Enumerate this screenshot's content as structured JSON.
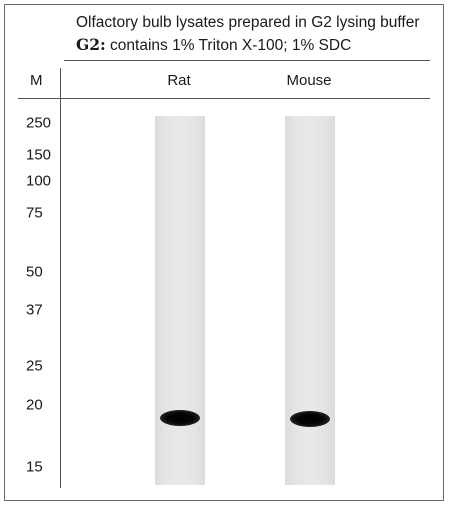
{
  "title": {
    "line1": "Olfactory bulb lysates  prepared in G2 lysing buffer",
    "line2_bold": "G2:",
    "line2_rest": " contains 1% Triton X-100; 1% SDC"
  },
  "marker_column_header": "M",
  "lanes": [
    {
      "label": "Rat"
    },
    {
      "label": "Mouse"
    }
  ],
  "markers": [
    "250",
    "150",
    "100",
    "75",
    "50",
    "37",
    "25",
    "20",
    "15"
  ]
}
